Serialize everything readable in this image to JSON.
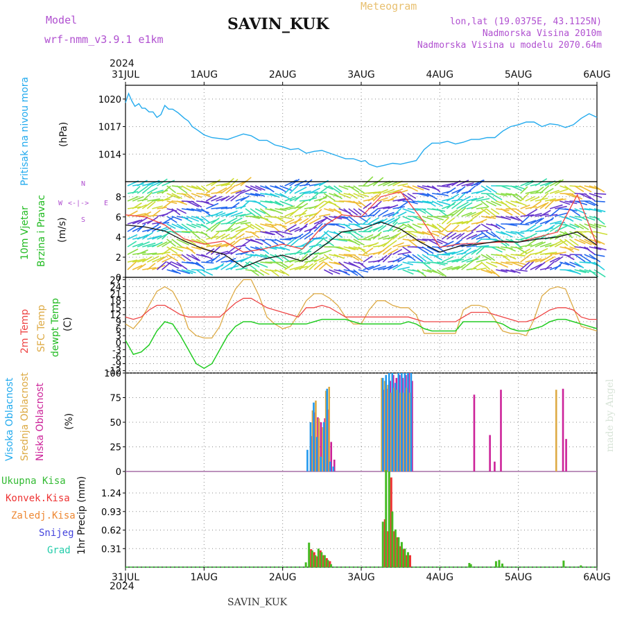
{
  "header": {
    "model_label": "Model",
    "model_name": "wrf-nmm_v3.9.1 e1km",
    "station": "SAVIN_KUK",
    "meteogram": "Meteogram",
    "lonlat": "lon,lat (19.0375E, 43.1125N)",
    "elevation": "Nadmorska Visina 2010m",
    "model_elevation": "Nadmorska Visina u modelu 2070.64m",
    "year_top": "2024",
    "year_bottom": "2024"
  },
  "footer": {
    "station": "SAVIN_KUK",
    "watermark": "made by Angel"
  },
  "x_ticks": [
    "31JUL",
    "1AUG",
    "2AUG",
    "3AUG",
    "4AUG",
    "5AUG",
    "6AUG"
  ],
  "colors": {
    "pressure": "#22aaee",
    "t2m": "#ee4444",
    "sfc": "#ddaa44",
    "dewpt": "#22cc22",
    "high_cloud": "#2299ee",
    "mid_cloud": "#ddaa44",
    "low_cloud": "#cc2299",
    "precip_total": "#44bb22",
    "precip_conv": "#ee3333",
    "precip_strat": "#ee8833",
    "snow": "#4444dd",
    "graupel": "#22ccaa",
    "wind_avg": "#111111",
    "wind_gust": "#ee4444"
  },
  "panels": {
    "pressure": {
      "label": "Pritisak na nivou mora",
      "unit": "(hPa)"
    },
    "wind": {
      "label_1": "10m Vjetar",
      "label_2": "Brzina i Pravac",
      "unit": "(m/s)",
      "compass_n": "N",
      "compass_s": "S",
      "compass_w": "W",
      "compass_e": "E"
    },
    "temp": {
      "label_1": "2m Temp",
      "label_2": "SFC Temp",
      "label_3": "dewpt Temp",
      "unit": "(C)"
    },
    "cloud": {
      "label_1": "Visoka Oblacnost",
      "label_2": "Srednja Oblacnost",
      "label_3": "Niska Oblacnost",
      "unit": "(%)"
    },
    "precip": {
      "legend": [
        "Ukupna Kisa",
        "Konvek.Kisa",
        "Zaledj.Kisa",
        "Snijeg",
        "Grad"
      ],
      "unit": "1hr Precip (mm)"
    }
  },
  "chart_data": [
    {
      "type": "line",
      "title": "Pritisak na nivou mora",
      "ylabel": "(hPa)",
      "ylim": [
        1011,
        1021.5
      ],
      "yticks": [
        1014,
        1017,
        1020
      ],
      "x_days": [
        0,
        0.04,
        0.08,
        0.12,
        0.17,
        0.21,
        0.25,
        0.3,
        0.35,
        0.4,
        0.45,
        0.5,
        0.55,
        0.6,
        0.67,
        0.75,
        0.8,
        0.85,
        0.92,
        1.0,
        1.1,
        1.2,
        1.3,
        1.4,
        1.5,
        1.6,
        1.7,
        1.8,
        1.9,
        2.0,
        2.1,
        2.2,
        2.3,
        2.4,
        2.5,
        2.6,
        2.7,
        2.8,
        2.9,
        3.0,
        3.05,
        3.1,
        3.2,
        3.3,
        3.4,
        3.5,
        3.6,
        3.7,
        3.8,
        3.9,
        4.0,
        4.1,
        4.2,
        4.3,
        4.4,
        4.5,
        4.6,
        4.7,
        4.8,
        4.9,
        5.0,
        5.1,
        5.2,
        5.3,
        5.4,
        5.5,
        5.6,
        5.7,
        5.8,
        5.9,
        6.0
      ],
      "series": [
        {
          "name": "Pritisak",
          "values": [
            1019.6,
            1020.6,
            1019.8,
            1019.2,
            1019.5,
            1019.0,
            1019.0,
            1018.6,
            1018.6,
            1018.0,
            1018.3,
            1019.3,
            1018.9,
            1018.9,
            1018.5,
            1017.9,
            1017.6,
            1017.0,
            1016.6,
            1016.1,
            1015.8,
            1015.7,
            1015.6,
            1015.9,
            1016.2,
            1016.0,
            1015.5,
            1015.5,
            1015.0,
            1014.8,
            1014.5,
            1014.6,
            1014.1,
            1014.3,
            1014.4,
            1014.1,
            1013.8,
            1013.5,
            1013.5,
            1013.2,
            1013.3,
            1012.9,
            1012.6,
            1012.8,
            1013.0,
            1012.9,
            1013.1,
            1013.3,
            1014.5,
            1015.2,
            1015.2,
            1015.4,
            1015.1,
            1015.3,
            1015.6,
            1015.6,
            1015.8,
            1015.8,
            1016.5,
            1017.0,
            1017.2,
            1017.5,
            1017.5,
            1017.0,
            1017.3,
            1017.2,
            1016.9,
            1017.2,
            1017.9,
            1018.4,
            1018.0
          ]
        }
      ]
    },
    {
      "type": "line",
      "title": "10m Vjetar Brzina i Pravac",
      "ylabel": "(m/s)",
      "ylim": [
        0,
        9.5
      ],
      "yticks": [
        0,
        2,
        4,
        6,
        8
      ],
      "x_days": [
        0,
        0.25,
        0.5,
        0.75,
        1.0,
        1.25,
        1.5,
        1.75,
        2.0,
        2.25,
        2.5,
        2.75,
        3.0,
        3.25,
        3.5,
        3.75,
        4.0,
        4.25,
        4.5,
        4.75,
        5.0,
        5.25,
        5.5,
        5.75,
        6.0
      ],
      "series": [
        {
          "name": "srednja",
          "values": [
            5.2,
            5.0,
            4.6,
            3.6,
            2.8,
            2.3,
            1.0,
            1.8,
            2.2,
            1.6,
            3.0,
            4.5,
            4.8,
            5.5,
            4.8,
            3.5,
            2.5,
            3.1,
            3.3,
            3.6,
            3.5,
            3.8,
            4.0,
            4.5,
            3.2
          ]
        },
        {
          "name": "udar",
          "values": [
            6.2,
            6.0,
            5.2,
            3.8,
            3.3,
            3.6,
            2.5,
            2.8,
            3.3,
            2.8,
            5.0,
            6.2,
            6.0,
            8.0,
            8.5,
            6.0,
            3.0,
            3.3,
            3.4,
            3.5,
            3.5,
            4.0,
            4.5,
            8.2,
            3.2
          ]
        }
      ]
    },
    {
      "type": "line",
      "title": "Temperature",
      "ylabel": "(C)",
      "ylim": [
        -13,
        28
      ],
      "yticks": [
        -12,
        -9,
        -6,
        -3,
        0,
        3,
        6,
        9,
        12,
        15,
        18,
        21,
        24,
        27
      ],
      "x_days": [
        0,
        0.1,
        0.2,
        0.3,
        0.4,
        0.5,
        0.6,
        0.7,
        0.8,
        0.9,
        1.0,
        1.1,
        1.2,
        1.3,
        1.4,
        1.5,
        1.6,
        1.7,
        1.8,
        1.9,
        2.0,
        2.1,
        2.2,
        2.3,
        2.4,
        2.5,
        2.6,
        2.7,
        2.8,
        2.9,
        3.0,
        3.1,
        3.2,
        3.3,
        3.4,
        3.5,
        3.6,
        3.7,
        3.8,
        3.9,
        4.0,
        4.1,
        4.2,
        4.3,
        4.4,
        4.5,
        4.6,
        4.7,
        4.8,
        4.9,
        5.0,
        5.1,
        5.2,
        5.3,
        5.4,
        5.5,
        5.6,
        5.7,
        5.8,
        5.9,
        6.0
      ],
      "series": [
        {
          "name": "2m Temp",
          "values": [
            11,
            10,
            11,
            14,
            16,
            16,
            14,
            12,
            11,
            11,
            11,
            11,
            11,
            14,
            17,
            19,
            19,
            17,
            15,
            14,
            13,
            12,
            11,
            15,
            15,
            16,
            15,
            13,
            11,
            11,
            11,
            11,
            11,
            11,
            11,
            11,
            11,
            10,
            9,
            9,
            9,
            9,
            9,
            11,
            13,
            13,
            13,
            12,
            11,
            10,
            9,
            9,
            10,
            12,
            14,
            15,
            15,
            14,
            11,
            10,
            10
          ]
        },
        {
          "name": "SFC Temp",
          "values": [
            8,
            6,
            10,
            16,
            22,
            24,
            22,
            16,
            6,
            3,
            2,
            2,
            7,
            16,
            23,
            27,
            27,
            20,
            11,
            8,
            6,
            7,
            12,
            18,
            21,
            21,
            19,
            16,
            11,
            8,
            8,
            14,
            18,
            18,
            16,
            15,
            15,
            12,
            4,
            4,
            4,
            4,
            4,
            14,
            16,
            16,
            15,
            10,
            5,
            4,
            4,
            3,
            10,
            20,
            23,
            24,
            23,
            15,
            7,
            6,
            5
          ]
        },
        {
          "name": "dewpt Temp",
          "values": [
            1,
            -5,
            -4,
            -1,
            5,
            9,
            8,
            3,
            -3,
            -9,
            -11,
            -9,
            -3,
            3,
            7,
            9,
            9,
            8,
            8,
            8,
            8,
            8,
            8,
            8,
            9,
            10,
            10,
            10,
            10,
            9,
            8,
            8,
            8,
            8,
            8,
            8,
            9,
            8,
            6,
            5,
            5,
            5,
            5,
            9,
            9,
            9,
            9,
            9,
            8,
            6,
            5,
            5,
            6,
            7,
            9,
            10,
            10,
            9,
            8,
            7,
            6
          ]
        }
      ]
    },
    {
      "type": "bar",
      "title": "Oblacnost",
      "ylabel": "(%)",
      "ylim": [
        0,
        100
      ],
      "yticks": [
        0,
        25,
        50,
        75,
        100
      ],
      "x_days": [
        2.33,
        2.37,
        2.41,
        2.45,
        2.5,
        2.54,
        2.58,
        2.62,
        2.66,
        3.25,
        3.29,
        3.33,
        3.37,
        3.41,
        3.45,
        3.49,
        3.53,
        3.57,
        3.61,
        3.65,
        3.7,
        4.4,
        4.6,
        4.66,
        4.74,
        5.47,
        5.53,
        5.57
      ],
      "series": [
        {
          "name": "Visoka Oblacnost",
          "values": [
            22,
            50,
            70,
            35,
            15,
            50,
            84,
            10,
            5,
            0,
            95,
            98,
            100,
            100,
            90,
            100,
            100,
            100,
            100,
            100,
            0,
            0,
            0,
            0,
            0,
            0,
            0,
            0
          ]
        },
        {
          "name": "Srednja Oblacnost",
          "values": [
            0,
            62,
            72,
            54,
            45,
            82,
            86,
            0,
            0,
            95,
            92,
            88,
            80,
            85,
            83,
            80,
            80,
            85,
            80,
            0,
            0,
            0,
            0,
            0,
            0,
            83,
            0,
            0
          ]
        },
        {
          "name": "Niska Oblacnost",
          "values": [
            36,
            60,
            55,
            50,
            54,
            63,
            30,
            12,
            0,
            83,
            84,
            92,
            98,
            95,
            98,
            95,
            98,
            100,
            92,
            0,
            0,
            78,
            37,
            10,
            83,
            0,
            84,
            33
          ]
        }
      ]
    },
    {
      "type": "bar",
      "title": "1hr Precip",
      "ylabel": "1hr Precip (mm)",
      "ylim": [
        0,
        1.6
      ],
      "yticks": [
        0.31,
        0.62,
        0.93,
        1.24
      ],
      "x_days": [
        2.3,
        2.34,
        2.38,
        2.42,
        2.46,
        2.5,
        2.54,
        2.58,
        2.62,
        3.28,
        3.32,
        3.36,
        3.4,
        3.44,
        3.48,
        3.52,
        3.56,
        3.6,
        4.38,
        4.4,
        4.72,
        4.76,
        4.8,
        5.58,
        5.8
      ],
      "series": [
        {
          "name": "Ukupna Kisa",
          "values": [
            0.08,
            0.41,
            0.28,
            0.2,
            0.31,
            0.25,
            0.2,
            0.12,
            0.05,
            0.76,
            1.62,
            1.6,
            0.93,
            0.63,
            0.5,
            0.42,
            0.31,
            0.25,
            0.07,
            0.05,
            0.1,
            0.12,
            0.06,
            0.11,
            0.03
          ]
        },
        {
          "name": "Konvek.Kisa",
          "values": [
            0,
            0.3,
            0.25,
            0.18,
            0.28,
            0.2,
            0.15,
            0.1,
            0,
            0.8,
            0.6,
            1.5,
            0.6,
            0.5,
            0.35,
            0.3,
            0.2,
            0.2,
            0,
            0,
            0,
            0,
            0,
            0,
            0
          ]
        },
        {
          "name": "Zaledj.Kisa",
          "values": [
            0,
            0,
            0,
            0,
            0,
            0,
            0,
            0,
            0,
            0,
            0,
            0,
            0,
            0,
            0,
            0,
            0,
            0,
            0,
            0,
            0,
            0,
            0,
            0,
            0
          ]
        },
        {
          "name": "Snijeg",
          "values": [
            0,
            0,
            0,
            0,
            0,
            0,
            0,
            0,
            0,
            0,
            0,
            0,
            0,
            0,
            0,
            0,
            0,
            0,
            0,
            0,
            0,
            0,
            0,
            0,
            0
          ]
        },
        {
          "name": "Grad",
          "values": [
            0,
            0,
            0,
            0,
            0,
            0,
            0,
            0,
            0,
            0,
            0,
            0,
            0,
            0,
            0,
            0,
            0,
            0,
            0,
            0,
            0,
            0,
            0,
            0,
            0
          ]
        }
      ]
    }
  ]
}
